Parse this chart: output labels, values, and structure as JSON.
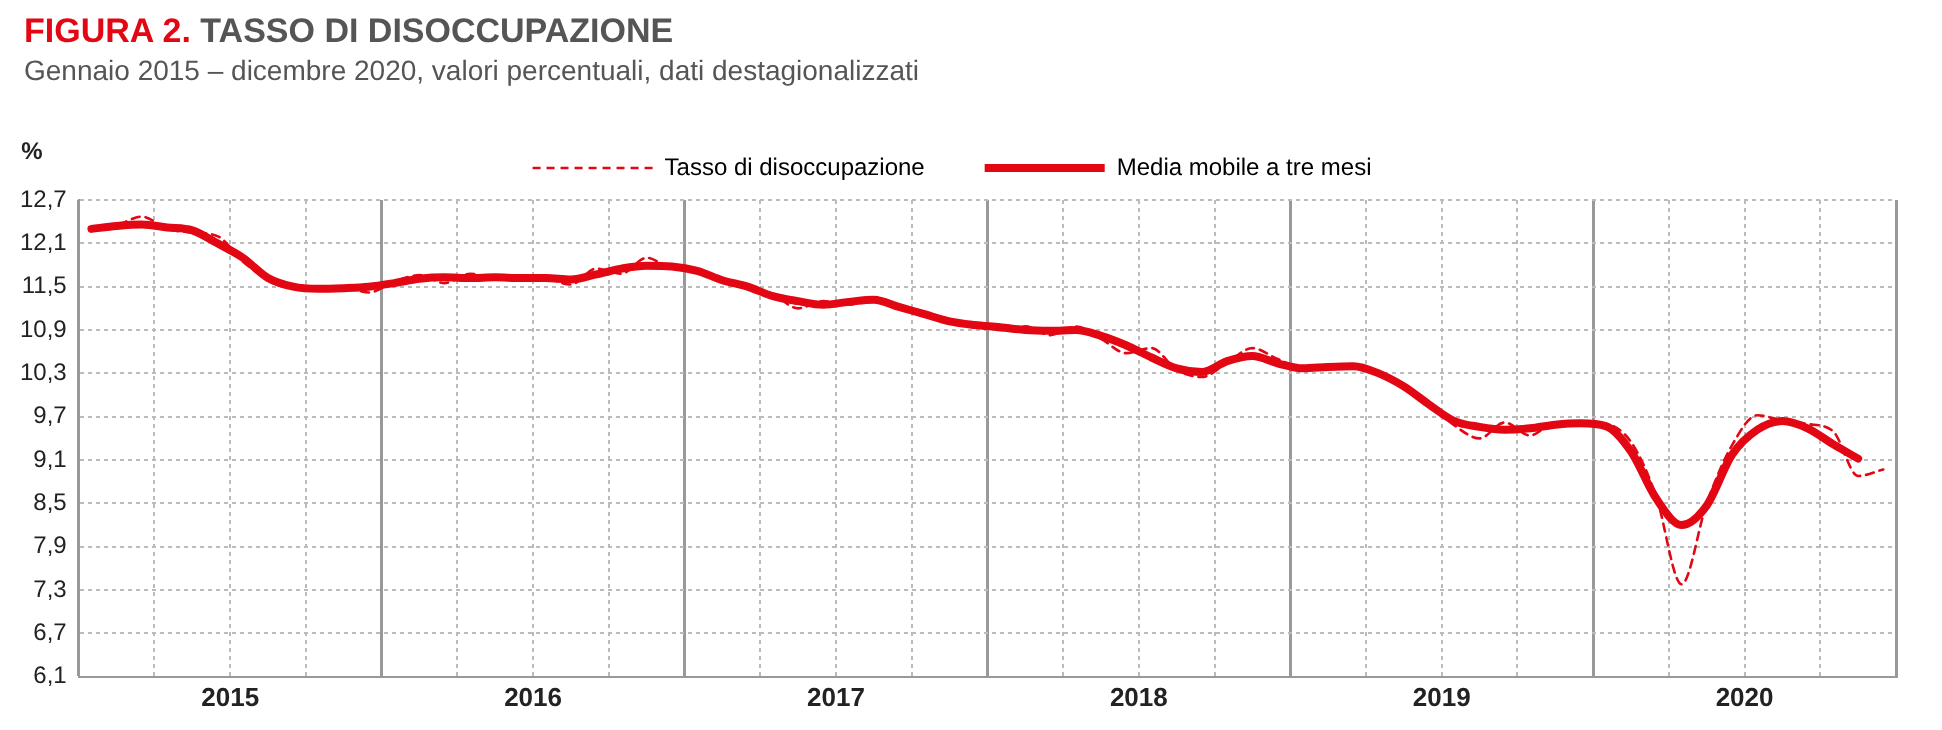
{
  "chart_data": {
    "type": "line",
    "title": "FIGURA 2. TASSO DI DISOCCUPAZIONE",
    "subtitle": "Gennaio 2015 – dicembre 2020, valori percentuali, dati destagionalizzati",
    "ylabel": "%",
    "x": [
      2015.042,
      2015.125,
      2015.208,
      2015.292,
      2015.375,
      2015.458,
      2015.542,
      2015.625,
      2015.708,
      2015.792,
      2015.875,
      2015.958,
      2016.042,
      2016.125,
      2016.208,
      2016.292,
      2016.375,
      2016.458,
      2016.542,
      2016.625,
      2016.708,
      2016.792,
      2016.875,
      2016.958,
      2017.042,
      2017.125,
      2017.208,
      2017.292,
      2017.375,
      2017.458,
      2017.542,
      2017.625,
      2017.708,
      2017.792,
      2017.875,
      2017.958,
      2018.042,
      2018.125,
      2018.208,
      2018.292,
      2018.375,
      2018.458,
      2018.542,
      2018.625,
      2018.708,
      2018.792,
      2018.875,
      2018.958,
      2019.042,
      2019.125,
      2019.208,
      2019.292,
      2019.375,
      2019.458,
      2019.542,
      2019.625,
      2019.708,
      2019.792,
      2019.875,
      2019.958,
      2020.042,
      2020.125,
      2020.208,
      2020.292,
      2020.375,
      2020.458,
      2020.542,
      2020.625,
      2020.708,
      2020.792,
      2020.875,
      2020.958
    ],
    "series": [
      {
        "name": "Tasso di disoccupazione",
        "color": "#e30613",
        "line_style": "dashed",
        "values": [
          12.3,
          12.35,
          12.47,
          12.3,
          12.25,
          12.2,
          11.85,
          11.6,
          11.5,
          11.45,
          11.5,
          11.42,
          11.57,
          11.66,
          11.55,
          11.68,
          11.6,
          11.65,
          11.62,
          11.53,
          11.75,
          11.68,
          11.9,
          11.75,
          11.72,
          11.6,
          11.52,
          11.4,
          11.2,
          11.3,
          11.25,
          11.35,
          11.22,
          11.12,
          11.02,
          10.97,
          10.9,
          10.95,
          10.83,
          10.95,
          10.78,
          10.58,
          10.65,
          10.35,
          10.25,
          10.45,
          10.65,
          10.5,
          10.38,
          10.42,
          10.38,
          10.3,
          10.15,
          9.88,
          9.58,
          9.4,
          9.62,
          9.44,
          9.62,
          9.62,
          9.6,
          9.35,
          8.6,
          7.38,
          8.5,
          9.3,
          9.72,
          9.65,
          9.6,
          9.5,
          8.88,
          8.97
        ]
      },
      {
        "name": "Media mobile a tre mesi",
        "color": "#e30613",
        "line_style": "solid",
        "values": [
          12.3,
          12.34,
          12.36,
          12.32,
          12.28,
          12.1,
          11.9,
          11.62,
          11.5,
          11.47,
          11.48,
          11.5,
          11.55,
          11.61,
          11.63,
          11.62,
          11.63,
          11.62,
          11.62,
          11.6,
          11.67,
          11.75,
          11.79,
          11.78,
          11.72,
          11.59,
          11.5,
          11.37,
          11.3,
          11.25,
          11.29,
          11.32,
          11.22,
          11.12,
          11.02,
          10.97,
          10.94,
          10.9,
          10.89,
          10.9,
          10.82,
          10.69,
          10.52,
          10.37,
          10.32,
          10.47,
          10.54,
          10.44,
          10.37,
          10.39,
          10.4,
          10.3,
          10.12,
          9.87,
          9.64,
          9.56,
          9.52,
          9.54,
          9.59,
          9.61,
          9.57,
          9.22,
          8.57,
          8.2,
          8.47,
          9.17,
          9.52,
          9.64,
          9.54,
          9.32,
          9.12,
          null
        ]
      }
    ],
    "xlim": [
      2015,
      2021
    ],
    "xticks": [
      {
        "value": 2015,
        "label": null
      },
      {
        "value": 2015.25,
        "label": null
      },
      {
        "value": 2015.5,
        "label": "2015"
      },
      {
        "value": 2015.75,
        "label": null
      },
      {
        "value": 2016,
        "label": null
      },
      {
        "value": 2016.25,
        "label": null
      },
      {
        "value": 2016.5,
        "label": "2016"
      },
      {
        "value": 2016.75,
        "label": null
      },
      {
        "value": 2017,
        "label": null
      },
      {
        "value": 2017.25,
        "label": null
      },
      {
        "value": 2017.5,
        "label": "2017"
      },
      {
        "value": 2017.75,
        "label": null
      },
      {
        "value": 2018,
        "label": null
      },
      {
        "value": 2018.25,
        "label": null
      },
      {
        "value": 2018.5,
        "label": "2018"
      },
      {
        "value": 2018.75,
        "label": null
      },
      {
        "value": 2019,
        "label": null
      },
      {
        "value": 2019.25,
        "label": null
      },
      {
        "value": 2019.5,
        "label": "2019"
      },
      {
        "value": 2019.75,
        "label": null
      },
      {
        "value": 2020,
        "label": null
      },
      {
        "value": 2020.25,
        "label": null
      },
      {
        "value": 2020.5,
        "label": "2020"
      },
      {
        "value": 2020.75,
        "label": null
      },
      {
        "value": 2021,
        "label": null
      }
    ],
    "ylim": [
      6.1,
      12.7
    ],
    "yticks": [
      {
        "value": 6.1,
        "label": "6,1"
      },
      {
        "value": 6.7,
        "label": "6,7"
      },
      {
        "value": 7.3,
        "label": "7,3"
      },
      {
        "value": 7.9,
        "label": "7,9"
      },
      {
        "value": 8.5,
        "label": "8,5"
      },
      {
        "value": 9.1,
        "label": "9,1"
      },
      {
        "value": 9.7,
        "label": "9,7"
      },
      {
        "value": 10.3,
        "label": "10,3"
      },
      {
        "value": 10.9,
        "label": "10,9"
      },
      {
        "value": 11.5,
        "label": "11,5"
      },
      {
        "value": 12.1,
        "label": "12,1"
      },
      {
        "value": 12.7,
        "label": "12,7"
      }
    ],
    "grid": true,
    "legend": "top",
    "marker": "none"
  }
}
